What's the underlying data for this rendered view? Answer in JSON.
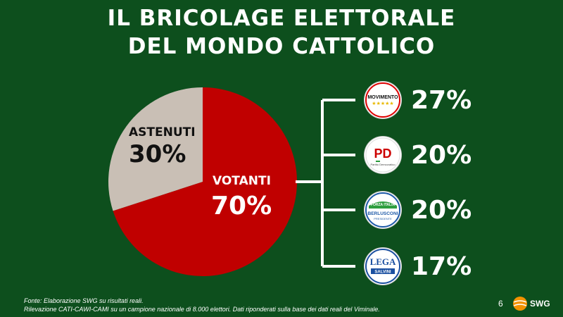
{
  "title": {
    "line1": "IL BRICOLAGE ELETTORALE",
    "line2": "DEL MONDO CATTOLICO"
  },
  "chart_data": {
    "type": "pie",
    "slices": [
      {
        "label": "VOTANTI",
        "value": 70,
        "value_label": "70%",
        "color": "#c00000"
      },
      {
        "label": "ASTENUTI",
        "value": 30,
        "value_label": "30%",
        "color": "#c9bfb5"
      }
    ]
  },
  "parties": [
    {
      "logo": "movimento-5-stelle-logo",
      "logo_text": "MOVIMENTO",
      "value": 27,
      "pct": "27%"
    },
    {
      "logo": "partito-democratico-logo",
      "logo_text": "PD",
      "logo_sub": "Partito Democratico",
      "value": 20,
      "pct": "20%"
    },
    {
      "logo": "forza-italia-logo",
      "logo_text": "FORZA ITALIA",
      "logo_sub": "BERLUSCONI",
      "logo_sub2": "PRESIDENTE",
      "value": 20,
      "pct": "20%"
    },
    {
      "logo": "lega-logo",
      "logo_text": "LEGA",
      "logo_sub": "SALVINI",
      "value": 17,
      "pct": "17%"
    }
  ],
  "footer": {
    "line1": "Fonte: Elaborazione SWG su risultati reali.",
    "line2": "Rilevazione CATI-CAWI-CAMI su un campione nazionale di 8.000 elettori. Dati riponderati sulla base dei dati reali del Viminale."
  },
  "page_number": "6",
  "brand": "SWG",
  "colors": {
    "background": "#0d4f1d",
    "votanti": "#c00000",
    "astenuti": "#c9bfb5"
  }
}
